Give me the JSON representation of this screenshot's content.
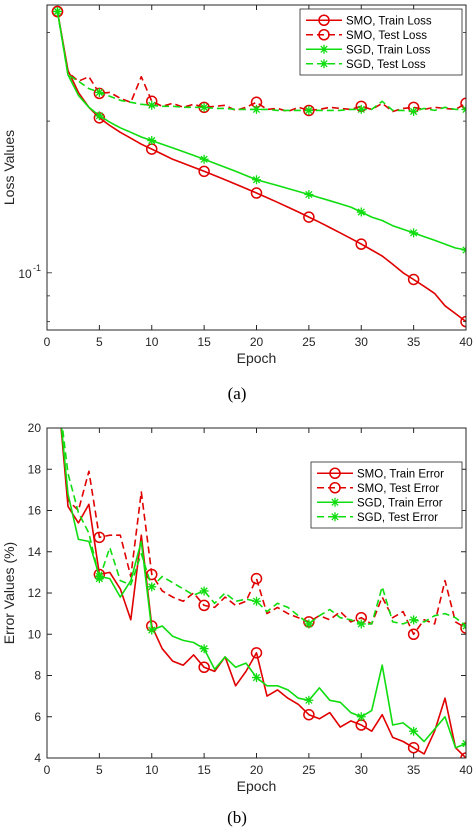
{
  "chart_data": [
    {
      "type": "line",
      "panel_label": "(a)",
      "xlabel": "Epoch",
      "ylabel": "Loss Values",
      "yscale": "log",
      "xlim": [
        0,
        40
      ],
      "ylim": [
        0.077,
        0.34
      ],
      "xticks": [
        0,
        5,
        10,
        15,
        20,
        25,
        30,
        35,
        40
      ],
      "yticks": [
        {
          "value": 0.1,
          "label": "10",
          "exponent": "-1"
        }
      ],
      "grid": false,
      "legend_position": "top-right",
      "x": [
        1,
        2,
        3,
        4,
        5,
        6,
        7,
        8,
        9,
        10,
        11,
        12,
        13,
        14,
        15,
        16,
        17,
        18,
        19,
        20,
        21,
        22,
        23,
        24,
        25,
        26,
        27,
        28,
        29,
        30,
        31,
        32,
        33,
        34,
        35,
        36,
        37,
        38,
        39,
        40
      ],
      "series": [
        {
          "name": "SMO, Train Loss",
          "color": "#e00000",
          "dash": "solid",
          "marker": "circle",
          "marker_every": 5,
          "values": [
            0.33,
            0.252,
            0.228,
            0.213,
            0.203,
            0.196,
            0.19,
            0.185,
            0.18,
            0.176,
            0.172,
            0.168,
            0.165,
            0.162,
            0.159,
            0.156,
            0.153,
            0.15,
            0.147,
            0.144,
            0.141,
            0.138,
            0.135,
            0.132,
            0.129,
            0.126,
            0.123,
            0.12,
            0.117,
            0.114,
            0.111,
            0.108,
            0.104,
            0.1,
            0.097,
            0.094,
            0.091,
            0.086,
            0.083,
            0.08
          ]
        },
        {
          "name": "SMO, Test Loss",
          "color": "#e00000",
          "dash": "dashed",
          "marker": "circle",
          "marker_every": 5,
          "values": [
            0.33,
            0.25,
            0.24,
            0.245,
            0.227,
            0.228,
            0.222,
            0.218,
            0.245,
            0.219,
            0.214,
            0.217,
            0.213,
            0.216,
            0.213,
            0.214,
            0.215,
            0.21,
            0.213,
            0.218,
            0.211,
            0.212,
            0.209,
            0.213,
            0.21,
            0.211,
            0.213,
            0.212,
            0.211,
            0.214,
            0.211,
            0.217,
            0.209,
            0.212,
            0.213,
            0.211,
            0.213,
            0.212,
            0.211,
            0.217
          ]
        },
        {
          "name": "SGD, Train Loss",
          "color": "#10dd10",
          "dash": "solid",
          "marker": "asterisk",
          "marker_every": 5,
          "values": [
            0.33,
            0.247,
            0.225,
            0.213,
            0.205,
            0.199,
            0.194,
            0.19,
            0.186,
            0.183,
            0.18,
            0.177,
            0.174,
            0.171,
            0.168,
            0.165,
            0.162,
            0.159,
            0.156,
            0.153,
            0.151,
            0.149,
            0.147,
            0.145,
            0.143,
            0.141,
            0.139,
            0.137,
            0.135,
            0.132,
            0.129,
            0.127,
            0.124,
            0.122,
            0.12,
            0.118,
            0.116,
            0.114,
            0.112,
            0.111
          ]
        },
        {
          "name": "SGD, Test Loss",
          "color": "#10dd10",
          "dash": "dashed",
          "marker": "asterisk",
          "marker_every": 5,
          "values": [
            0.33,
            0.247,
            0.24,
            0.232,
            0.228,
            0.224,
            0.22,
            0.218,
            0.216,
            0.215,
            0.214,
            0.214,
            0.213,
            0.213,
            0.213,
            0.212,
            0.212,
            0.211,
            0.211,
            0.211,
            0.211,
            0.21,
            0.21,
            0.21,
            0.21,
            0.21,
            0.21,
            0.21,
            0.211,
            0.211,
            0.211,
            0.219,
            0.21,
            0.21,
            0.209,
            0.212,
            0.21,
            0.213,
            0.211,
            0.211
          ]
        }
      ]
    },
    {
      "type": "line",
      "panel_label": "(b)",
      "xlabel": "Epoch",
      "ylabel": "Error Values (%)",
      "yscale": "linear",
      "xlim": [
        0,
        40
      ],
      "ylim": [
        4,
        20
      ],
      "xticks": [
        0,
        5,
        10,
        15,
        20,
        25,
        30,
        35,
        40
      ],
      "yticks": [
        4,
        6,
        8,
        10,
        12,
        14,
        16,
        18,
        20
      ],
      "grid": false,
      "legend_position": "top-right",
      "x": [
        1,
        2,
        3,
        4,
        5,
        6,
        7,
        8,
        9,
        10,
        11,
        12,
        13,
        14,
        15,
        16,
        17,
        18,
        19,
        20,
        21,
        22,
        23,
        24,
        25,
        26,
        27,
        28,
        29,
        30,
        31,
        32,
        33,
        34,
        35,
        36,
        37,
        38,
        39,
        40
      ],
      "series": [
        {
          "name": "SMO, Train Error",
          "color": "#e00000",
          "dash": "solid",
          "marker": "circle",
          "marker_every": 5,
          "values": [
            22,
            16.2,
            15.4,
            16.3,
            12.9,
            13.0,
            12.2,
            10.7,
            14.8,
            10.4,
            9.3,
            8.7,
            8.5,
            9.0,
            8.4,
            8.2,
            8.9,
            7.5,
            8.2,
            9.1,
            7.0,
            7.3,
            6.9,
            6.6,
            6.1,
            5.9,
            6.2,
            5.5,
            5.8,
            5.6,
            5.3,
            6.1,
            5.0,
            4.8,
            4.5,
            4.2,
            5.3,
            6.9,
            4.5,
            4.0
          ]
        },
        {
          "name": "SMO, Test Error",
          "color": "#e00000",
          "dash": "dashed",
          "marker": "circle",
          "marker_every": 5,
          "values": [
            22,
            16.5,
            16.0,
            17.9,
            14.7,
            14.8,
            14.8,
            12.8,
            16.9,
            12.9,
            12.1,
            11.8,
            11.6,
            12.0,
            11.4,
            11.3,
            11.8,
            11.4,
            11.6,
            12.7,
            11.0,
            11.3,
            11.0,
            10.8,
            10.6,
            10.9,
            10.7,
            11.1,
            10.6,
            10.8,
            10.5,
            11.8,
            10.8,
            11.1,
            10.0,
            10.7,
            10.5,
            12.6,
            10.6,
            10.3
          ]
        },
        {
          "name": "SGD, Train Error",
          "color": "#10dd10",
          "dash": "solid",
          "marker": "asterisk",
          "marker_every": 5,
          "values": [
            22,
            16.8,
            14.6,
            14.5,
            12.8,
            12.7,
            11.8,
            12.6,
            14.5,
            10.2,
            10.4,
            9.9,
            9.7,
            9.6,
            9.3,
            8.3,
            8.9,
            8.4,
            8.6,
            7.9,
            7.5,
            7.5,
            7.3,
            6.9,
            6.8,
            7.4,
            6.8,
            6.7,
            6.2,
            6.0,
            6.3,
            8.5,
            5.6,
            5.7,
            5.3,
            4.8,
            5.4,
            6.0,
            4.5,
            4.7
          ]
        },
        {
          "name": "SGD, Test Error",
          "color": "#10dd10",
          "dash": "dashed",
          "marker": "asterisk",
          "marker_every": 5,
          "values": [
            22,
            17.8,
            15.9,
            14.9,
            12.7,
            14.2,
            12.6,
            12.4,
            13.9,
            12.3,
            12.8,
            12.5,
            12.2,
            11.9,
            12.1,
            11.5,
            12.0,
            11.6,
            11.7,
            11.6,
            11.1,
            11.5,
            11.3,
            10.9,
            10.5,
            10.9,
            11.2,
            10.8,
            10.7,
            10.5,
            10.5,
            12.3,
            10.6,
            10.5,
            10.7,
            10.6,
            10.9,
            11.0,
            10.8,
            10.4
          ]
        }
      ]
    }
  ]
}
